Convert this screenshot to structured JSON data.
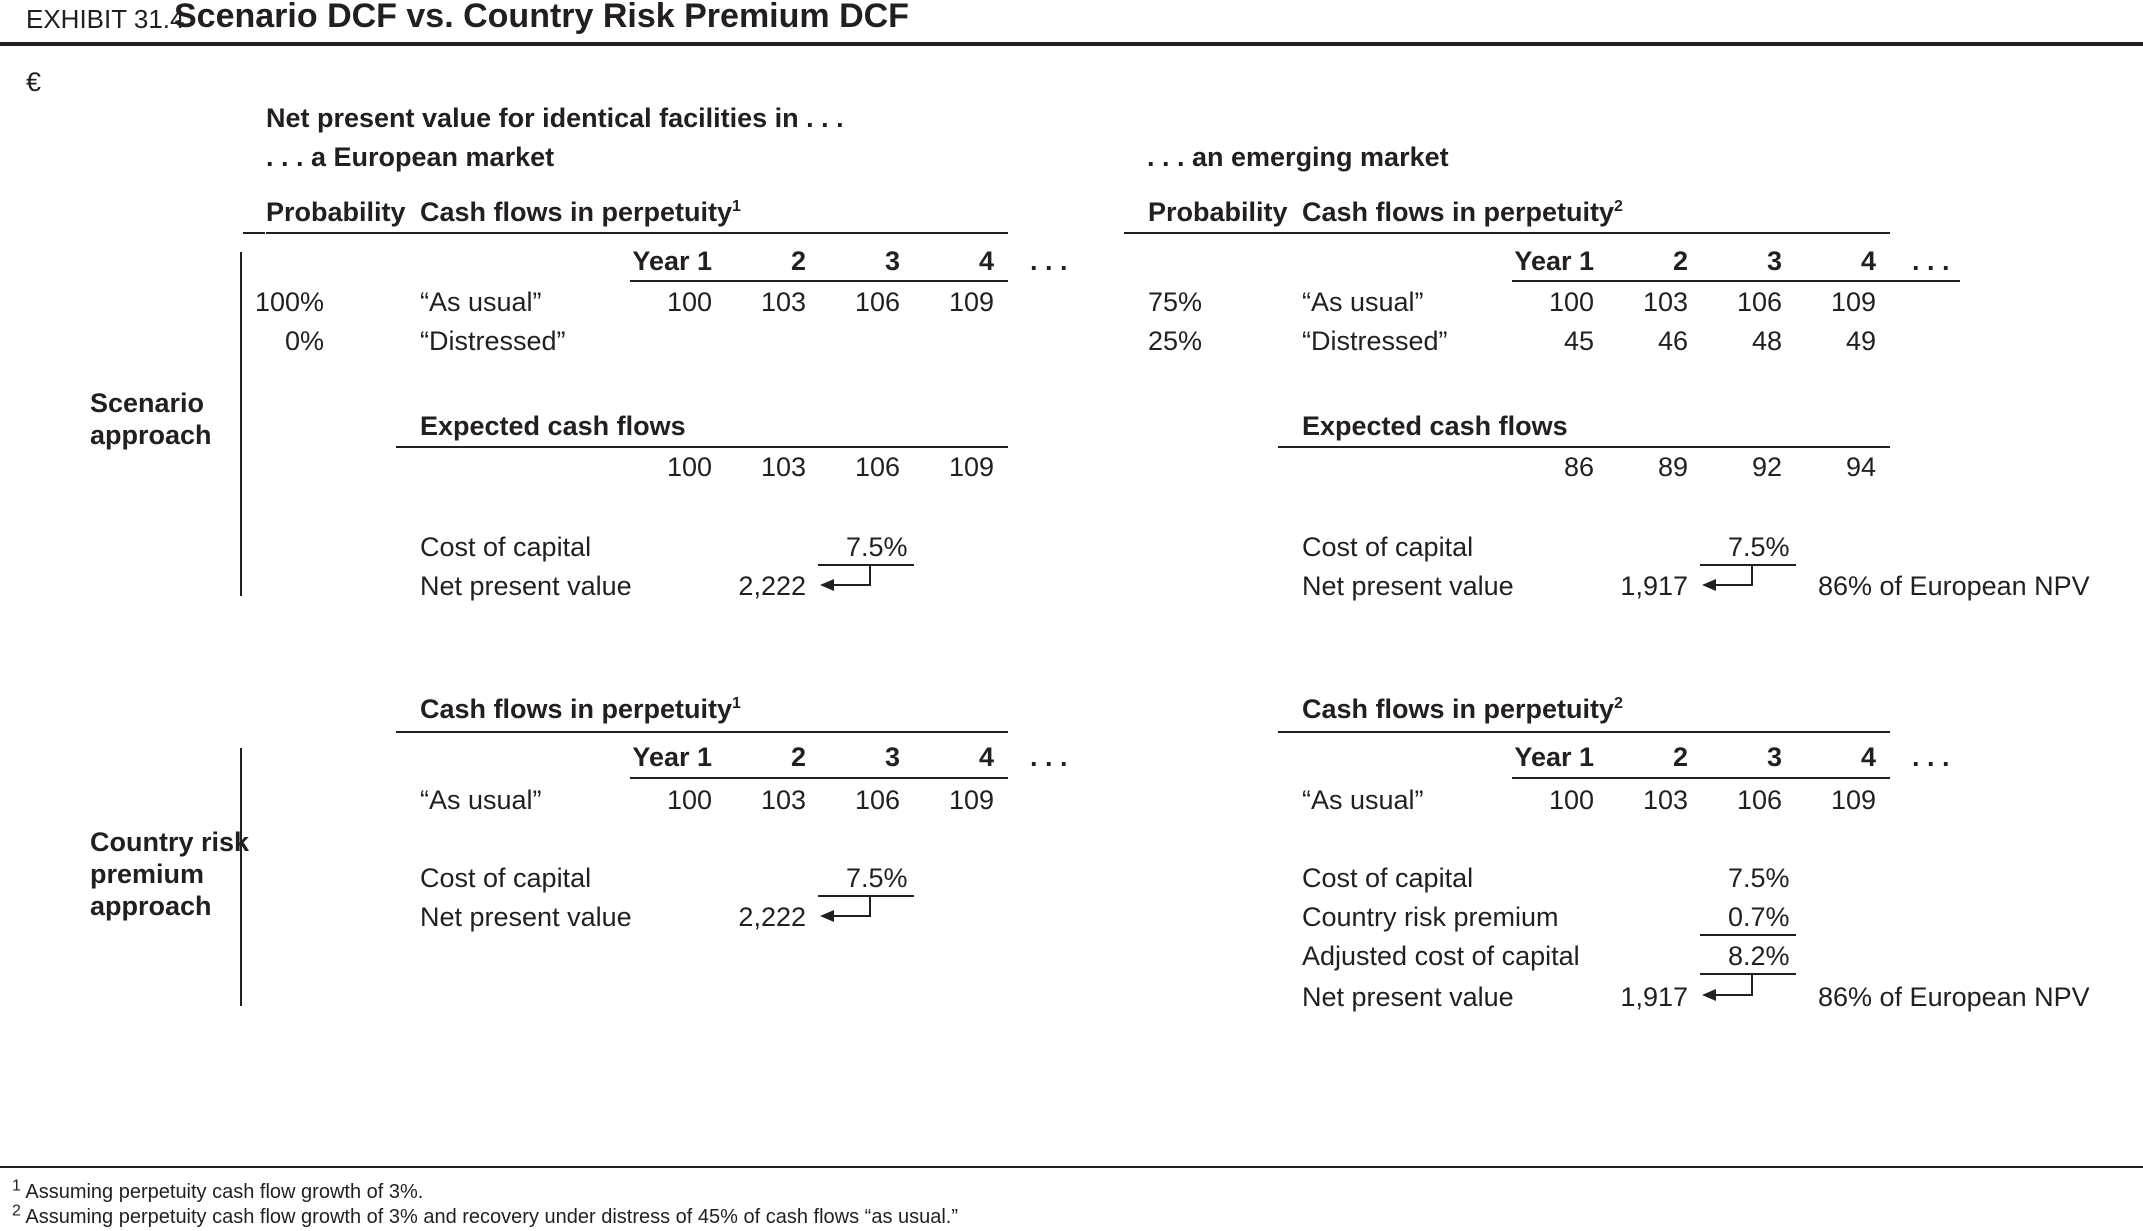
{
  "exhibit_label": "EXHIBIT 31.4",
  "title": "Scenario DCF vs. Country Risk Premium DCF",
  "currency": "€",
  "intro": "Net present value for identical facilities in . . .",
  "european_label": ". . . a European market",
  "emerging_label": ". . . an emerging market",
  "row_labels": {
    "scenario": [
      "Scenario",
      "approach"
    ],
    "crp": [
      "Country risk",
      "premium",
      "approach"
    ]
  },
  "headers": {
    "probability": "Probability",
    "cash_flows": "Cash flows in perpetuity",
    "fn1": "1",
    "fn2": "2",
    "years": [
      "Year 1",
      "2",
      "3",
      "4"
    ],
    "ellipsis": ". . ."
  },
  "scenario": {
    "european": {
      "rows": [
        {
          "prob": "100%",
          "label": "“As usual”",
          "values": [
            "100",
            "103",
            "106",
            "109"
          ]
        },
        {
          "prob": "0%",
          "label": "“Distressed”",
          "values": [
            "",
            "",
            "",
            ""
          ]
        }
      ],
      "expected_label": "Expected cash flows",
      "expected": [
        "100",
        "103",
        "106",
        "109"
      ],
      "cost_label": "Cost of capital",
      "cost": "7.5%",
      "npv_label": "Net present value",
      "npv": "2,222"
    },
    "emerging": {
      "rows": [
        {
          "prob": "75%",
          "label": "“As usual”",
          "values": [
            "100",
            "103",
            "106",
            "109"
          ]
        },
        {
          "prob": "25%",
          "label": "“Distressed”",
          "values": [
            "45",
            "46",
            "48",
            "49"
          ]
        }
      ],
      "expected_label": "Expected cash flows",
      "expected": [
        "86",
        "89",
        "92",
        "94"
      ],
      "cost_label": "Cost of capital",
      "cost": "7.5%",
      "npv_label": "Net present value",
      "npv": "1,917",
      "note": "86% of European NPV"
    }
  },
  "crp": {
    "european": {
      "row": {
        "label": "“As usual”",
        "values": [
          "100",
          "103",
          "106",
          "109"
        ]
      },
      "cost_label": "Cost of capital",
      "cost": "7.5%",
      "npv_label": "Net present value",
      "npv": "2,222"
    },
    "emerging": {
      "row": {
        "label": "“As usual”",
        "values": [
          "100",
          "103",
          "106",
          "109"
        ]
      },
      "cost_label": "Cost of capital",
      "cost": "7.5%",
      "crp_label": "Country risk premium",
      "crp": "0.7%",
      "adj_label": "Adjusted cost of capital",
      "adj": "8.2%",
      "npv_label": "Net present value",
      "npv": "1,917",
      "note": "86% of European NPV"
    }
  },
  "footnotes": [
    {
      "mark": "1",
      "text": "Assuming perpetuity cash flow growth of 3%."
    },
    {
      "mark": "2",
      "text": "Assuming perpetuity cash flow growth of 3% and recovery under distress of 45% of cash flows “as usual.”"
    }
  ]
}
